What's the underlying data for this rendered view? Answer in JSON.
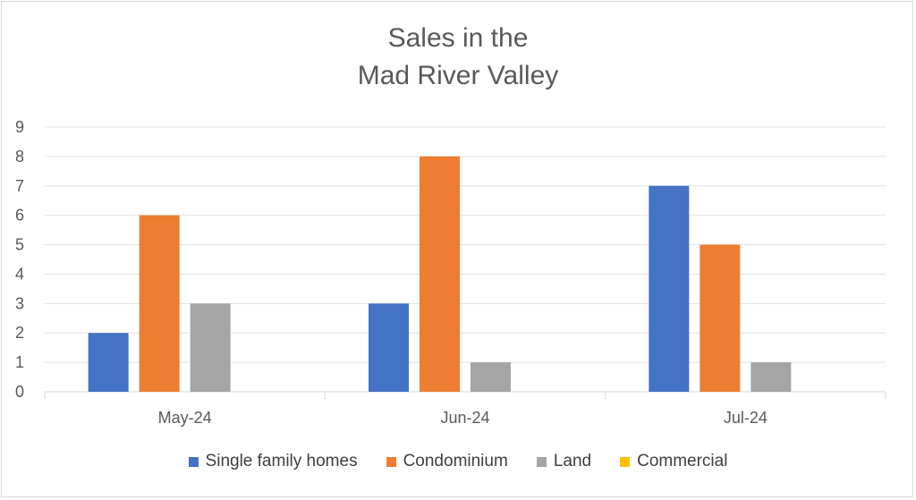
{
  "chart_data": {
    "type": "bar",
    "title_lines": [
      "Sales in the",
      "Mad River Valley"
    ],
    "categories": [
      "May-24",
      "Jun-24",
      "Jul-24"
    ],
    "series": [
      {
        "name": "Single family homes",
        "values": [
          2,
          3,
          7
        ],
        "color": "#4472c4"
      },
      {
        "name": "Condominium",
        "values": [
          6,
          8,
          5
        ],
        "color": "#ed7d31"
      },
      {
        "name": "Land",
        "values": [
          3,
          1,
          1
        ],
        "color": "#a5a5a5"
      },
      {
        "name": "Commercial",
        "values": [
          0,
          0,
          0
        ],
        "color": "#ffc000"
      }
    ],
    "yticks": [
      "0",
      "1",
      "2",
      "3",
      "4",
      "5",
      "6",
      "7",
      "8",
      "9"
    ],
    "ylim": [
      0,
      9
    ],
    "grid": true,
    "legend_position": "bottom"
  }
}
